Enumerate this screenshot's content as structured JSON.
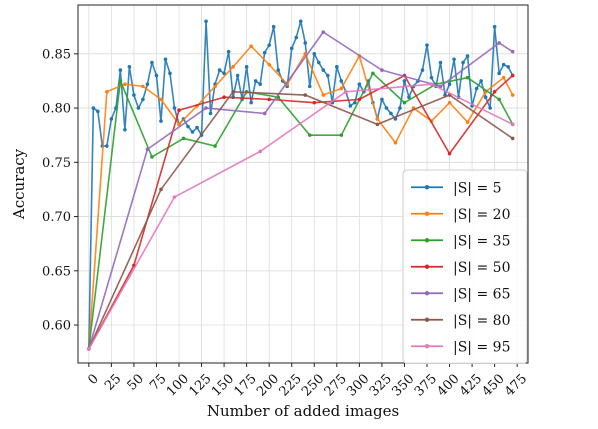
{
  "chart_data": {
    "type": "line",
    "title": "",
    "xlabel": "Number of added images",
    "ylabel": "Accuracy",
    "xlim": [
      -12,
      487
    ],
    "ylim": [
      0.565,
      0.895
    ],
    "xticks": [
      0,
      25,
      50,
      75,
      100,
      125,
      150,
      175,
      200,
      225,
      250,
      275,
      300,
      325,
      350,
      375,
      400,
      425,
      450,
      475
    ],
    "yticks": [
      0.6,
      0.65,
      0.7,
      0.75,
      0.8,
      0.85
    ],
    "ytick_labels": [
      "0.60",
      "0.65",
      "0.70",
      "0.75",
      "0.80",
      "0.85"
    ],
    "grid": true,
    "legend_position": "lower-right",
    "series": [
      {
        "name": "|S| = 5",
        "color": "#1f77b4",
        "x": [
          0,
          5,
          10,
          15,
          20,
          25,
          30,
          35,
          40,
          45,
          50,
          55,
          60,
          65,
          70,
          75,
          80,
          85,
          90,
          95,
          100,
          105,
          110,
          115,
          120,
          125,
          130,
          135,
          140,
          145,
          150,
          155,
          160,
          165,
          170,
          175,
          180,
          185,
          190,
          195,
          200,
          205,
          210,
          215,
          220,
          225,
          230,
          235,
          240,
          245,
          250,
          255,
          260,
          265,
          270,
          275,
          280,
          285,
          290,
          295,
          300,
          305,
          310,
          315,
          320,
          325,
          330,
          335,
          340,
          345,
          350,
          355,
          360,
          365,
          370,
          375,
          380,
          385,
          390,
          395,
          400,
          405,
          410,
          415,
          420,
          425,
          430,
          435,
          440,
          445,
          450,
          455,
          460,
          465,
          470
        ],
        "values": [
          0.578,
          0.8,
          0.797,
          0.765,
          0.765,
          0.79,
          0.8,
          0.835,
          0.78,
          0.838,
          0.812,
          0.8,
          0.808,
          0.822,
          0.842,
          0.83,
          0.788,
          0.845,
          0.832,
          0.8,
          0.785,
          0.79,
          0.783,
          0.778,
          0.782,
          0.775,
          0.88,
          0.795,
          0.822,
          0.835,
          0.832,
          0.852,
          0.81,
          0.83,
          0.808,
          0.838,
          0.805,
          0.825,
          0.822,
          0.851,
          0.858,
          0.875,
          0.835,
          0.825,
          0.82,
          0.855,
          0.865,
          0.88,
          0.86,
          0.82,
          0.85,
          0.842,
          0.835,
          0.83,
          0.805,
          0.838,
          0.825,
          0.815,
          0.802,
          0.805,
          0.822,
          0.815,
          0.825,
          0.805,
          0.79,
          0.808,
          0.8,
          0.795,
          0.79,
          0.8,
          0.825,
          0.81,
          0.82,
          0.825,
          0.835,
          0.858,
          0.828,
          0.82,
          0.842,
          0.812,
          0.822,
          0.845,
          0.81,
          0.842,
          0.848,
          0.802,
          0.818,
          0.825,
          0.81,
          0.8,
          0.875,
          0.832,
          0.84,
          0.838,
          0.83
        ]
      },
      {
        "name": "|S| = 20",
        "color": "#ff7f0e",
        "x": [
          0,
          20,
          40,
          60,
          80,
          100,
          120,
          140,
          160,
          180,
          200,
          220,
          240,
          260,
          280,
          300,
          320,
          340,
          360,
          380,
          400,
          420,
          440,
          460,
          470
        ],
        "values": [
          0.578,
          0.815,
          0.822,
          0.82,
          0.808,
          0.785,
          0.802,
          0.82,
          0.838,
          0.857,
          0.84,
          0.822,
          0.85,
          0.812,
          0.818,
          0.848,
          0.79,
          0.768,
          0.8,
          0.788,
          0.805,
          0.787,
          0.815,
          0.828,
          0.812
        ]
      },
      {
        "name": "|S| = 35",
        "color": "#2ca02c",
        "x": [
          0,
          35,
          70,
          105,
          140,
          175,
          210,
          245,
          280,
          315,
          350,
          385,
          420,
          455,
          470
        ],
        "values": [
          0.578,
          0.825,
          0.755,
          0.772,
          0.765,
          0.815,
          0.81,
          0.775,
          0.775,
          0.832,
          0.805,
          0.822,
          0.828,
          0.808,
          0.785
        ]
      },
      {
        "name": "|S| = 50",
        "color": "#d62728",
        "x": [
          0,
          50,
          100,
          150,
          200,
          250,
          300,
          350,
          400,
          450,
          470
        ],
        "values": [
          0.578,
          0.655,
          0.798,
          0.81,
          0.808,
          0.805,
          0.808,
          0.83,
          0.758,
          0.815,
          0.83
        ]
      },
      {
        "name": "|S| = 65",
        "color": "#9467bd",
        "x": [
          0,
          65,
          130,
          195,
          260,
          325,
          390,
          455,
          470
        ],
        "values": [
          0.578,
          0.762,
          0.8,
          0.795,
          0.87,
          0.835,
          0.82,
          0.86,
          0.852
        ]
      },
      {
        "name": "|S| = 80",
        "color": "#8c564b",
        "x": [
          0,
          80,
          160,
          240,
          320,
          400,
          470
        ],
        "values": [
          0.578,
          0.725,
          0.815,
          0.812,
          0.785,
          0.812,
          0.772
        ]
      },
      {
        "name": "|S| = 95",
        "color": "#e377c2",
        "x": [
          0,
          95,
          190,
          285,
          380,
          470
        ],
        "values": [
          0.578,
          0.718,
          0.76,
          0.815,
          0.822,
          0.785
        ]
      }
    ]
  }
}
